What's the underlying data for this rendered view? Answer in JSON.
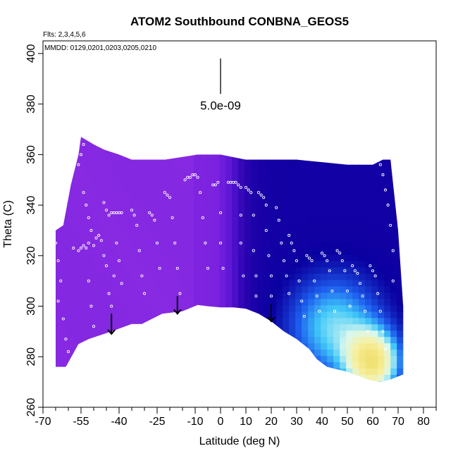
{
  "chart_data": {
    "type": "heatmap",
    "title": "ATOM2 Southbound CONBNA_GEOS5",
    "flights_label": "Flts: 2,3,4,5,6",
    "dates_label": "MMDD: 0129,0201,0203,0205,0210",
    "xlabel": "Latitude (deg N)",
    "ylabel": "Theta (C)",
    "xlim": [
      -70,
      85
    ],
    "ylim": [
      260,
      405
    ],
    "x_ticks": [
      -70,
      -55,
      -40,
      -25,
      -10,
      0,
      10,
      20,
      30,
      40,
      50,
      60,
      70,
      80
    ],
    "x_tick_labels": [
      "-70",
      "-55",
      "-40",
      "-25",
      "-10",
      "0",
      "10",
      "20",
      "30",
      "40",
      "50",
      "60",
      "70",
      "80"
    ],
    "x_minor_step": 5,
    "y_ticks": [
      260,
      280,
      300,
      320,
      340,
      360,
      380,
      400
    ],
    "y_tick_labels": [
      "260",
      "280",
      "300",
      "320",
      "340",
      "360",
      "380",
      "400"
    ],
    "scale_bar": {
      "label": "5.0e-09",
      "x": 0,
      "y_bottom": 384,
      "y_top": 398
    },
    "arrows": [
      {
        "x": -43,
        "y_top": 297,
        "y_bottom": 289
      },
      {
        "x": -17,
        "y_top": 304,
        "y_bottom": 297
      },
      {
        "x": 20,
        "y_top": 301,
        "y_bottom": 294
      }
    ],
    "colors": {
      "purple": "#8a2be2",
      "violet": "#7a22e0",
      "indigo": "#5a14d4",
      "darkblue": "#2a04b0",
      "navy": "#0a00a0",
      "blue": "#1e60f0",
      "cyan": "#40c8f8",
      "pale": "#d8f8f0",
      "yellow": "#f8f0a0",
      "gold": "#f0e070"
    },
    "surface_boundary": [
      [
        -65,
        276
      ],
      [
        -61,
        276
      ],
      [
        -56,
        285
      ],
      [
        -52,
        287
      ],
      [
        -43,
        290
      ],
      [
        -35,
        293
      ],
      [
        -31,
        293
      ],
      [
        -23,
        297
      ],
      [
        -15,
        298
      ],
      [
        -9,
        300.5
      ],
      [
        -5,
        300
      ],
      [
        0,
        299.5
      ],
      [
        5,
        299.5
      ],
      [
        10,
        299
      ],
      [
        15,
        297
      ],
      [
        20,
        294
      ],
      [
        25,
        290
      ],
      [
        30,
        287
      ],
      [
        35,
        283
      ],
      [
        38,
        279
      ],
      [
        42,
        276
      ],
      [
        50,
        274
      ],
      [
        58,
        271
      ],
      [
        63,
        270
      ],
      [
        67,
        271
      ],
      [
        72,
        273
      ]
    ],
    "top_boundary": [
      [
        -65,
        330
      ],
      [
        -62,
        332
      ],
      [
        -59,
        348
      ],
      [
        -56,
        360
      ],
      [
        -55,
        367
      ],
      [
        -50,
        364
      ],
      [
        -46,
        362
      ],
      [
        -40,
        360
      ],
      [
        -35,
        358
      ],
      [
        -22,
        358
      ],
      [
        -9,
        360
      ],
      [
        0,
        360
      ],
      [
        10,
        358
      ],
      [
        20,
        358
      ],
      [
        30,
        358
      ],
      [
        40,
        357
      ],
      [
        50,
        356
      ],
      [
        60,
        356
      ],
      [
        64,
        358
      ],
      [
        67,
        358
      ],
      [
        70,
        330
      ],
      [
        72,
        300
      ],
      [
        72,
        273
      ]
    ],
    "points": [
      [
        -65,
        335
      ],
      [
        -65,
        325
      ],
      [
        -64,
        318
      ],
      [
        -63,
        310
      ],
      [
        -64,
        302
      ],
      [
        -62,
        295
      ],
      [
        -61,
        287
      ],
      [
        -60,
        282
      ],
      [
        -58,
        323
      ],
      [
        -56,
        322
      ],
      [
        -55,
        323
      ],
      [
        -54,
        324
      ],
      [
        -53,
        323
      ],
      [
        -52,
        325
      ],
      [
        -51,
        330
      ],
      [
        -50,
        324
      ],
      [
        -49,
        327
      ],
      [
        -48,
        328
      ],
      [
        -47,
        326
      ],
      [
        -56,
        356
      ],
      [
        -55,
        360
      ],
      [
        -54,
        364
      ],
      [
        -54,
        345
      ],
      [
        -53,
        340
      ],
      [
        -52,
        335
      ],
      [
        -52,
        310
      ],
      [
        -51,
        300
      ],
      [
        -50,
        292
      ],
      [
        -46,
        341
      ],
      [
        -45,
        338
      ],
      [
        -44,
        336
      ],
      [
        -43,
        337
      ],
      [
        -42,
        337
      ],
      [
        -41,
        337
      ],
      [
        -40,
        337
      ],
      [
        -39,
        337
      ],
      [
        -46,
        320
      ],
      [
        -45,
        316
      ],
      [
        -44,
        305
      ],
      [
        -43,
        300
      ],
      [
        -42,
        312
      ],
      [
        -41,
        325
      ],
      [
        -40,
        318
      ],
      [
        -39,
        309
      ],
      [
        -35,
        338
      ],
      [
        -34,
        336
      ],
      [
        -33,
        332
      ],
      [
        -32,
        322
      ],
      [
        -31,
        312
      ],
      [
        -30,
        305
      ],
      [
        -28,
        337
      ],
      [
        -27,
        336
      ],
      [
        -26,
        334
      ],
      [
        -25,
        325
      ],
      [
        -24,
        315
      ],
      [
        -22,
        345
      ],
      [
        -21,
        344
      ],
      [
        -20,
        343
      ],
      [
        -19,
        335
      ],
      [
        -18,
        325
      ],
      [
        -17,
        315
      ],
      [
        -16,
        305
      ],
      [
        -14,
        350
      ],
      [
        -13,
        351
      ],
      [
        -12,
        351
      ],
      [
        -11,
        352
      ],
      [
        -10,
        352
      ],
      [
        -9,
        351
      ],
      [
        -8,
        345
      ],
      [
        -7,
        335
      ],
      [
        -6,
        325
      ],
      [
        -5,
        315
      ],
      [
        -3,
        348
      ],
      [
        -2,
        348
      ],
      [
        -1,
        349
      ],
      [
        0,
        337
      ],
      [
        0,
        325
      ],
      [
        1,
        315
      ],
      [
        3,
        349
      ],
      [
        4,
        349
      ],
      [
        5,
        349
      ],
      [
        6,
        349
      ],
      [
        7,
        348
      ],
      [
        8,
        347
      ],
      [
        8,
        336
      ],
      [
        8,
        325
      ],
      [
        9,
        312
      ],
      [
        10,
        347
      ],
      [
        11,
        346
      ],
      [
        12,
        345
      ],
      [
        13,
        336
      ],
      [
        13,
        322
      ],
      [
        14,
        312
      ],
      [
        14,
        304
      ],
      [
        15,
        345
      ],
      [
        16,
        344
      ],
      [
        17,
        343
      ],
      [
        18,
        340
      ],
      [
        18,
        330
      ],
      [
        19,
        320
      ],
      [
        20,
        312
      ],
      [
        20,
        304
      ],
      [
        22,
        339
      ],
      [
        23,
        334
      ],
      [
        24,
        325
      ],
      [
        25,
        318
      ],
      [
        26,
        312
      ],
      [
        27,
        305
      ],
      [
        27,
        328
      ],
      [
        28,
        325
      ],
      [
        29,
        322
      ],
      [
        30,
        318
      ],
      [
        31,
        310
      ],
      [
        32,
        302
      ],
      [
        33,
        296
      ],
      [
        34,
        320
      ],
      [
        35,
        319
      ],
      [
        36,
        318
      ],
      [
        37,
        310
      ],
      [
        38,
        304
      ],
      [
        39,
        298
      ],
      [
        40,
        321
      ],
      [
        41,
        320
      ],
      [
        42,
        318
      ],
      [
        43,
        314
      ],
      [
        44,
        306
      ],
      [
        45,
        298
      ],
      [
        46,
        322
      ],
      [
        47,
        321
      ],
      [
        48,
        318
      ],
      [
        49,
        314
      ],
      [
        50,
        306
      ],
      [
        51,
        300
      ],
      [
        52,
        316
      ],
      [
        53,
        314
      ],
      [
        54,
        313
      ],
      [
        55,
        309
      ],
      [
        56,
        304
      ],
      [
        57,
        298
      ],
      [
        58,
        290
      ],
      [
        59,
        316
      ],
      [
        60,
        314
      ],
      [
        61,
        312
      ],
      [
        62,
        305
      ],
      [
        63,
        298
      ],
      [
        64,
        290
      ],
      [
        65,
        283
      ],
      [
        61,
        359
      ],
      [
        62,
        358
      ],
      [
        63,
        356
      ],
      [
        64,
        352
      ],
      [
        65,
        346
      ],
      [
        66,
        340
      ],
      [
        67,
        332
      ],
      [
        68,
        322
      ],
      [
        68,
        310
      ]
    ]
  }
}
